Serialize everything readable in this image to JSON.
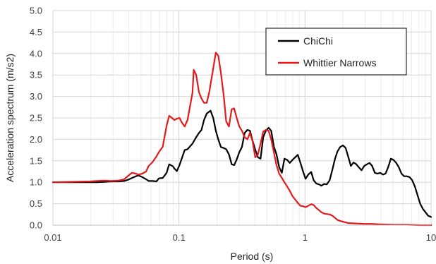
{
  "chart_data": {
    "type": "line",
    "title": "",
    "xlabel": "Period (s)",
    "ylabel": "Acceleration spectrum (m/s2)",
    "xscale": "log",
    "xlim": [
      0.01,
      10
    ],
    "ylim": [
      0,
      5
    ],
    "x_ticks": [
      "0.01",
      "0.1",
      "1",
      "10"
    ],
    "y_ticks": [
      "0.0",
      "0.5",
      "1.0",
      "1.5",
      "2.0",
      "2.5",
      "3.0",
      "3.5",
      "4.0",
      "4.5",
      "5.0"
    ],
    "grid": "major and minor vertical, major horizontal",
    "legend_position": "top-right",
    "series": [
      {
        "name": "ChiChi",
        "color": "#000000",
        "points": [
          [
            0.01,
            1.0
          ],
          [
            0.0197,
            1.0
          ],
          [
            0.0225,
            1.0
          ],
          [
            0.0258,
            1.01
          ],
          [
            0.0288,
            1.02
          ],
          [
            0.0331,
            1.02
          ],
          [
            0.0368,
            1.03
          ],
          [
            0.0395,
            1.06
          ],
          [
            0.0424,
            1.1
          ],
          [
            0.0455,
            1.14
          ],
          [
            0.0477,
            1.16
          ],
          [
            0.0512,
            1.12
          ],
          [
            0.0548,
            1.07
          ],
          [
            0.0575,
            1.03
          ],
          [
            0.0617,
            1.03
          ],
          [
            0.0662,
            1.02
          ],
          [
            0.0693,
            1.09
          ],
          [
            0.0744,
            1.1
          ],
          [
            0.0798,
            1.22
          ],
          [
            0.0836,
            1.42
          ],
          [
            0.0897,
            1.37
          ],
          [
            0.0919,
            1.32
          ],
          [
            0.0963,
            1.26
          ],
          [
            0.101,
            1.4
          ],
          [
            0.111,
            1.75
          ],
          [
            0.117,
            1.77
          ],
          [
            0.128,
            1.9
          ],
          [
            0.137,
            2.05
          ],
          [
            0.144,
            2.15
          ],
          [
            0.151,
            2.22
          ],
          [
            0.158,
            2.45
          ],
          [
            0.166,
            2.6
          ],
          [
            0.178,
            2.67
          ],
          [
            0.187,
            2.5
          ],
          [
            0.196,
            2.2
          ],
          [
            0.205,
            2.0
          ],
          [
            0.215,
            1.82
          ],
          [
            0.226,
            1.8
          ],
          [
            0.237,
            1.77
          ],
          [
            0.249,
            1.65
          ],
          [
            0.262,
            1.42
          ],
          [
            0.274,
            1.4
          ],
          [
            0.287,
            1.53
          ],
          [
            0.301,
            1.7
          ],
          [
            0.316,
            1.82
          ],
          [
            0.332,
            2.15
          ],
          [
            0.349,
            2.22
          ],
          [
            0.366,
            2.2
          ],
          [
            0.384,
            1.96
          ],
          [
            0.403,
            1.76
          ],
          [
            0.423,
            1.58
          ],
          [
            0.444,
            1.55
          ],
          [
            0.466,
            2.05
          ],
          [
            0.489,
            2.2
          ],
          [
            0.514,
            2.27
          ],
          [
            0.539,
            2.2
          ],
          [
            0.566,
            1.83
          ],
          [
            0.594,
            1.65
          ],
          [
            0.624,
            1.35
          ],
          [
            0.655,
            1.22
          ],
          [
            0.687,
            1.55
          ],
          [
            0.722,
            1.52
          ],
          [
            0.758,
            1.45
          ],
          [
            0.795,
            1.52
          ],
          [
            0.835,
            1.58
          ],
          [
            0.876,
            1.64
          ],
          [
            0.92,
            1.45
          ],
          [
            0.966,
            1.25
          ],
          [
            1.01,
            1.08
          ],
          [
            1.06,
            1.18
          ],
          [
            1.12,
            1.24
          ],
          [
            1.17,
            1.05
          ],
          [
            1.23,
            0.97
          ],
          [
            1.29,
            0.95
          ],
          [
            1.35,
            0.92
          ],
          [
            1.42,
            0.96
          ],
          [
            1.49,
            0.95
          ],
          [
            1.57,
            1.05
          ],
          [
            1.65,
            1.3
          ],
          [
            1.73,
            1.55
          ],
          [
            1.81,
            1.72
          ],
          [
            1.9,
            1.82
          ],
          [
            2.0,
            1.86
          ],
          [
            2.1,
            1.8
          ],
          [
            2.2,
            1.6
          ],
          [
            2.31,
            1.38
          ],
          [
            2.43,
            1.46
          ],
          [
            2.55,
            1.42
          ],
          [
            2.67,
            1.35
          ],
          [
            2.81,
            1.28
          ],
          [
            2.95,
            1.38
          ],
          [
            3.1,
            1.42
          ],
          [
            3.25,
            1.45
          ],
          [
            3.41,
            1.38
          ],
          [
            3.58,
            1.22
          ],
          [
            3.76,
            1.2
          ],
          [
            3.95,
            1.22
          ],
          [
            4.15,
            1.18
          ],
          [
            4.35,
            1.2
          ],
          [
            4.57,
            1.35
          ],
          [
            4.8,
            1.55
          ],
          [
            5.04,
            1.52
          ],
          [
            5.29,
            1.45
          ],
          [
            5.55,
            1.35
          ],
          [
            5.83,
            1.2
          ],
          [
            6.12,
            1.14
          ],
          [
            6.43,
            1.14
          ],
          [
            6.75,
            1.12
          ],
          [
            7.08,
            1.05
          ],
          [
            7.44,
            0.9
          ],
          [
            7.81,
            0.7
          ],
          [
            8.2,
            0.5
          ],
          [
            8.61,
            0.38
          ],
          [
            9.04,
            0.3
          ],
          [
            9.49,
            0.22
          ],
          [
            10.0,
            0.19
          ]
        ]
      },
      {
        "name": "Whittier Narrows",
        "color": "#e31a1c",
        "points": [
          [
            0.01,
            1.0
          ],
          [
            0.0197,
            1.02
          ],
          [
            0.0225,
            1.03
          ],
          [
            0.0258,
            1.04
          ],
          [
            0.0288,
            1.03
          ],
          [
            0.0331,
            1.04
          ],
          [
            0.0368,
            1.07
          ],
          [
            0.0395,
            1.15
          ],
          [
            0.0424,
            1.22
          ],
          [
            0.0455,
            1.2
          ],
          [
            0.0477,
            1.18
          ],
          [
            0.0512,
            1.2
          ],
          [
            0.0548,
            1.25
          ],
          [
            0.0575,
            1.38
          ],
          [
            0.0617,
            1.47
          ],
          [
            0.0662,
            1.6
          ],
          [
            0.0693,
            1.7
          ],
          [
            0.0744,
            1.83
          ],
          [
            0.0798,
            2.32
          ],
          [
            0.0836,
            2.55
          ],
          [
            0.0897,
            2.48
          ],
          [
            0.0919,
            2.45
          ],
          [
            0.0963,
            2.48
          ],
          [
            0.101,
            2.5
          ],
          [
            0.105,
            2.4
          ],
          [
            0.111,
            2.3
          ],
          [
            0.117,
            2.45
          ],
          [
            0.128,
            3.08
          ],
          [
            0.131,
            3.62
          ],
          [
            0.137,
            3.5
          ],
          [
            0.144,
            3.1
          ],
          [
            0.151,
            2.95
          ],
          [
            0.158,
            2.85
          ],
          [
            0.166,
            2.85
          ],
          [
            0.174,
            3.1
          ],
          [
            0.187,
            3.65
          ],
          [
            0.196,
            4.02
          ],
          [
            0.205,
            3.95
          ],
          [
            0.215,
            3.55
          ],
          [
            0.226,
            3.05
          ],
          [
            0.237,
            2.42
          ],
          [
            0.249,
            2.3
          ],
          [
            0.262,
            2.7
          ],
          [
            0.274,
            2.72
          ],
          [
            0.287,
            2.5
          ],
          [
            0.301,
            2.3
          ],
          [
            0.316,
            2.2
          ],
          [
            0.332,
            2.05
          ],
          [
            0.349,
            2.0
          ],
          [
            0.366,
            2.15
          ],
          [
            0.384,
            1.95
          ],
          [
            0.403,
            1.58
          ],
          [
            0.423,
            1.65
          ],
          [
            0.444,
            1.9
          ],
          [
            0.466,
            2.18
          ],
          [
            0.489,
            2.22
          ],
          [
            0.514,
            2.2
          ],
          [
            0.539,
            2.0
          ],
          [
            0.566,
            1.7
          ],
          [
            0.594,
            1.4
          ],
          [
            0.624,
            1.2
          ],
          [
            0.655,
            1.1
          ],
          [
            0.687,
            1.0
          ],
          [
            0.722,
            0.9
          ],
          [
            0.758,
            0.8
          ],
          [
            0.795,
            0.68
          ],
          [
            0.835,
            0.6
          ],
          [
            0.876,
            0.52
          ],
          [
            0.92,
            0.45
          ],
          [
            0.966,
            0.44
          ],
          [
            1.01,
            0.42
          ],
          [
            1.06,
            0.45
          ],
          [
            1.12,
            0.49
          ],
          [
            1.17,
            0.47
          ],
          [
            1.23,
            0.4
          ],
          [
            1.29,
            0.35
          ],
          [
            1.35,
            0.3
          ],
          [
            1.42,
            0.27
          ],
          [
            1.49,
            0.26
          ],
          [
            1.57,
            0.25
          ],
          [
            1.65,
            0.22
          ],
          [
            1.73,
            0.17
          ],
          [
            1.81,
            0.12
          ],
          [
            1.9,
            0.1
          ],
          [
            2.0,
            0.08
          ],
          [
            2.2,
            0.05
          ],
          [
            2.55,
            0.04
          ],
          [
            2.95,
            0.03
          ],
          [
            3.41,
            0.03
          ],
          [
            3.95,
            0.02
          ],
          [
            5.04,
            0.01
          ],
          [
            6.43,
            0.01
          ],
          [
            8.2,
            0.0
          ],
          [
            10.0,
            0.0
          ]
        ]
      }
    ]
  }
}
